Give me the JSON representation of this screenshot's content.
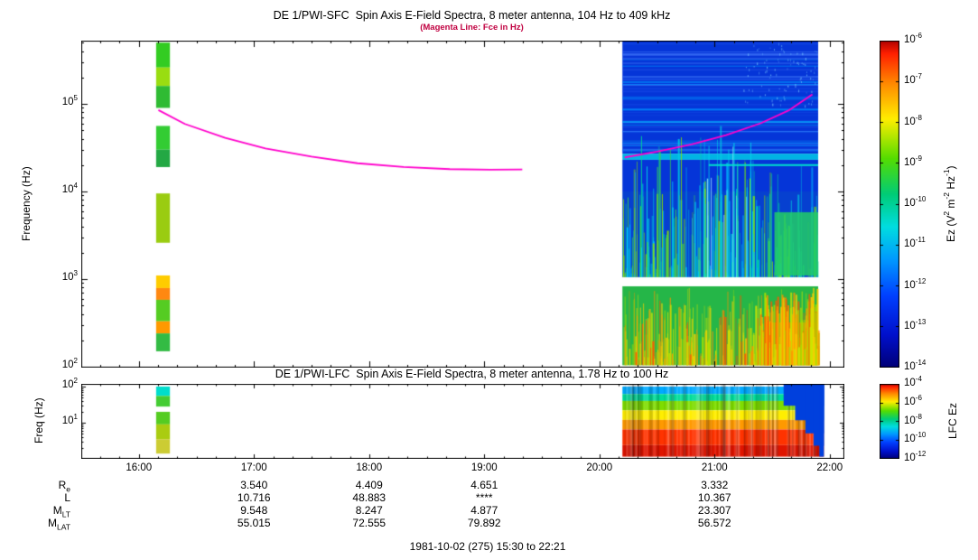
{
  "colors": {
    "background": "#ffffff",
    "axis": "#000000",
    "subtitle": "#c00040"
  },
  "noise_seed": 1981,
  "chart_data": [
    {
      "type": "heatmap",
      "instrument": "SFC",
      "title": "DE 1/PWI-SFC  Spin Axis E-Field Spectra, 8 meter antenna, 104 Hz to 409 kHz",
      "subtitle": "(Magenta Line: Fce in Hz)",
      "ylabel": "Frequency (Hz)",
      "tick_base": "10",
      "y_tick_exponents": [
        5,
        4,
        3,
        2
      ],
      "y_range_hz": [
        104,
        409000
      ],
      "x_ticks": [
        "16:00",
        "17:00",
        "18:00",
        "19:00",
        "20:00",
        "21:00",
        "22:00"
      ],
      "x_tick_hours": [
        16,
        17,
        18,
        19,
        20,
        21,
        22
      ],
      "time_span": "15:30 to 22:21",
      "colorbar_tick_exponents": [
        -6,
        -7,
        -8,
        -9,
        -10,
        -11,
        -12,
        -13,
        -14
      ],
      "colorbar_label_parts": [
        {
          "t": "Ez (V"
        },
        {
          "s": "2"
        },
        {
          "t": " m"
        },
        {
          "s": "-2"
        },
        {
          "t": " Hz"
        },
        {
          "s": "-1"
        },
        {
          "t": ")"
        }
      ],
      "fce_line": {
        "color": "#ff00cc",
        "segments": [
          [
            [
              16.17,
              85000
            ],
            [
              16.4,
              59000
            ],
            [
              16.75,
              41000
            ],
            [
              17.1,
              31000
            ],
            [
              17.5,
              25000
            ],
            [
              17.9,
              21000
            ],
            [
              18.3,
              19000
            ],
            [
              18.7,
              18000
            ],
            [
              19.05,
              17700
            ],
            [
              19.33,
              17800
            ]
          ],
          [
            [
              20.22,
              24500
            ],
            [
              20.5,
              28500
            ],
            [
              20.8,
              34500
            ],
            [
              21.1,
              44000
            ],
            [
              21.4,
              60000
            ],
            [
              21.65,
              85000
            ],
            [
              21.85,
              128000
            ]
          ]
        ]
      },
      "cal_stripe": {
        "t_start": 16.15,
        "t_end": 16.27,
        "segments": [
          {
            "f1": 500000,
            "f2": 260000,
            "color": "#33cc22"
          },
          {
            "f1": 260000,
            "f2": 160000,
            "color": "#99dd11"
          },
          {
            "f1": 160000,
            "f2": 90000,
            "color": "#2fbb33"
          },
          {
            "f1": 56000,
            "f2": 30000,
            "color": "#33cc33"
          },
          {
            "f1": 30000,
            "f2": 19000,
            "color": "#23a844"
          },
          {
            "f1": 9500,
            "f2": 2600,
            "color": "#9acc11"
          },
          {
            "f1": 1100,
            "f2": 790,
            "color": "#ffcc00"
          },
          {
            "f1": 790,
            "f2": 580,
            "color": "#ff8811"
          },
          {
            "f1": 580,
            "f2": 330,
            "color": "#55cc22"
          },
          {
            "f1": 330,
            "f2": 240,
            "color": "#ff9900"
          },
          {
            "f1": 240,
            "f2": 150,
            "color": "#33bb44"
          }
        ]
      },
      "block": {
        "t_start": 20.2,
        "t_end": 21.9,
        "bands": [
          {
            "f1": 530000,
            "f2": 27000,
            "color": "#0535d8"
          },
          {
            "f1": 27000,
            "f2": 23000,
            "color": "#00b4e4"
          },
          {
            "f1": 23000,
            "f2": 10000,
            "color": "#0535d8"
          },
          {
            "f1": 10000,
            "f2": 1050,
            "color": "#0640d0"
          },
          {
            "f1": 1050,
            "f2": 830,
            "color": "#ffffff"
          },
          {
            "f1": 830,
            "f2": 104,
            "color": "#25b648"
          }
        ],
        "hstreak_colors": [
          "#1e55ee",
          "#0090ff",
          "#3a70f5",
          "#00b8ff"
        ],
        "cool_colors": [
          "#00cfe0",
          "#00d896",
          "#3cd44c",
          "#8ae000",
          "#00b8ff"
        ],
        "warm_colors": [
          "#cde400",
          "#ffd000",
          "#ff9100",
          "#ff5500",
          "#a8e000"
        ],
        "blob_color": "#22cc66"
      }
    },
    {
      "type": "heatmap",
      "instrument": "LFC",
      "title": "DE 1/PWI-LFC  Spin Axis E-Field Spectra, 8 meter antenna, 1.78 Hz to 100 Hz",
      "ylabel": "Freq (Hz)",
      "tick_base": "10",
      "y_tick_exponents": [
        2,
        1
      ],
      "y_range_hz": [
        1.78,
        100
      ],
      "colorbar_tick_exponents": [
        -4,
        -6,
        -8,
        -10,
        -12
      ],
      "colorbar_label": "LFC Ez",
      "cal_stripe": {
        "t_start": 16.15,
        "t_end": 16.27,
        "segments": [
          {
            "f1": 100,
            "f2": 55,
            "color": "#00ddcc"
          },
          {
            "f1": 55,
            "f2": 28,
            "color": "#44cc33"
          },
          {
            "f1": 20,
            "f2": 9,
            "color": "#55cc22"
          },
          {
            "f1": 9,
            "f2": 3.5,
            "color": "#aacc11"
          },
          {
            "f1": 3.5,
            "f2": 1.4,
            "color": "#cccc33"
          }
        ]
      },
      "block": {
        "t_start": 20.2,
        "t_end": 21.95,
        "bands": [
          {
            "f1": 100,
            "f2": 62,
            "color": "#00aaff"
          },
          {
            "f1": 62,
            "f2": 40,
            "color": "#00dd99"
          },
          {
            "f1": 40,
            "f2": 22,
            "color": "#7fdd00"
          },
          {
            "f1": 22,
            "f2": 12,
            "color": "#ffee00"
          },
          {
            "f1": 12,
            "f2": 6.5,
            "color": "#ff9900"
          },
          {
            "f1": 6.5,
            "f2": 2.4,
            "color": "#ff3300"
          },
          {
            "f1": 2.4,
            "f2": 1.15,
            "color": "#e01500"
          }
        ],
        "staircase": [
          {
            "t": 21.6,
            "depth": 0.3
          },
          {
            "t": 21.7,
            "depth": 0.5
          },
          {
            "t": 21.79,
            "depth": 0.68
          },
          {
            "t": 21.86,
            "depth": 0.85
          },
          {
            "t": 21.91,
            "depth": 1.0
          }
        ],
        "stair_color": "#0040dd"
      }
    }
  ],
  "colorbar_stops": [
    [
      0,
      "#b00000"
    ],
    [
      0.04,
      "#ff2000"
    ],
    [
      0.13,
      "#ff8800"
    ],
    [
      0.24,
      "#ffee00"
    ],
    [
      0.36,
      "#55dd00"
    ],
    [
      0.47,
      "#00cc77"
    ],
    [
      0.57,
      "#00dde0"
    ],
    [
      0.67,
      "#0099ff"
    ],
    [
      0.78,
      "#0040ff"
    ],
    [
      0.9,
      "#0010cc"
    ],
    [
      1,
      "#000077"
    ]
  ],
  "annotations": {
    "col_hours": [
      17,
      18,
      19,
      21
    ],
    "rows": [
      {
        "label": "R",
        "sub": "e",
        "values": [
          "3.540",
          "4.409",
          "4.651",
          "3.332"
        ]
      },
      {
        "label": "L",
        "sub": "",
        "values": [
          "10.716",
          "48.883",
          "****",
          "10.367"
        ]
      },
      {
        "label": "M",
        "sub": "LT",
        "values": [
          "9.548",
          "8.247",
          "4.877",
          "23.307"
        ]
      },
      {
        "label": "M",
        "sub": "LAT",
        "values": [
          "55.015",
          "72.555",
          "79.892",
          "56.572"
        ]
      }
    ]
  },
  "footer": {
    "date_range": "1981-10-02 (275) 15:30 to 22:21"
  }
}
